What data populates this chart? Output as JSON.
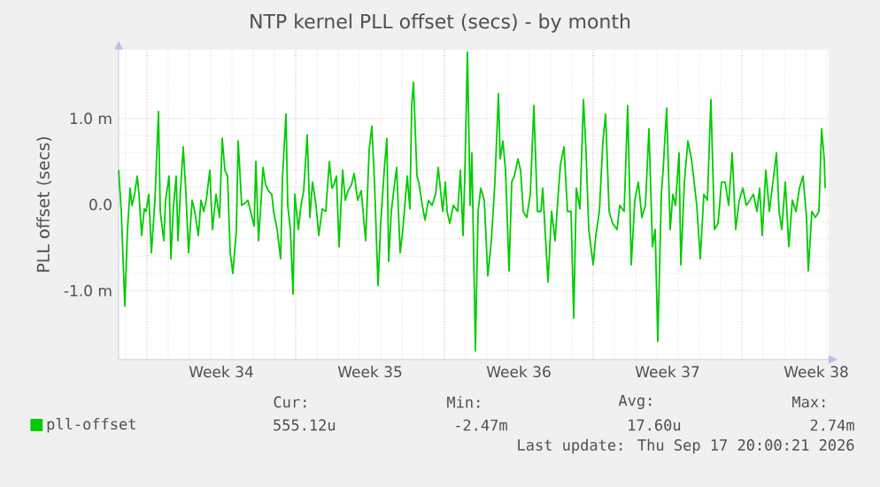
{
  "chart_data": {
    "type": "line",
    "title": "NTP kernel PLL offset (secs) - by month",
    "ylabel": "PLL offset (secs)",
    "xlim": [
      "2026-08-15T16:00",
      "2026-09-18T02:00"
    ],
    "xticks": [
      {
        "value": "2026-08-17T00:00",
        "label": null
      },
      {
        "value": "2026-08-20T12:00",
        "label": "Week 34"
      },
      {
        "value": "2026-08-24T00:00",
        "label": null
      },
      {
        "value": "2026-08-27T12:00",
        "label": "Week 35"
      },
      {
        "value": "2026-08-31T00:00",
        "label": null
      },
      {
        "value": "2026-09-03T12:00",
        "label": "Week 36"
      },
      {
        "value": "2026-09-07T00:00",
        "label": null
      },
      {
        "value": "2026-09-10T12:00",
        "label": "Week 37"
      },
      {
        "value": "2026-09-14T00:00",
        "label": null
      },
      {
        "value": "2026-09-17T12:00",
        "label": "Week 38"
      }
    ],
    "ylim": [
      -1.8,
      1.8
    ],
    "yticks": [
      {
        "value": -1,
        "label": "-1.0 m"
      },
      {
        "value": 0,
        "label": "0.0"
      },
      {
        "value": 1,
        "label": "1.0 m"
      }
    ],
    "grid": true,
    "legend": "bottom",
    "marker": "none",
    "line_style": "solid",
    "annotations": [
      "Cur:",
      "555.12u",
      "Min:",
      "-2.47m",
      "Avg:",
      "17.60u",
      "Max:",
      "2.74m",
      "Last update: Thu Sep 17 20:00:21 2026"
    ],
    "series": [
      {
        "name": "pll-offset",
        "color": "#00cc00",
        "x": [
          "2026-08-15T16:00",
          "2026-08-15T19:00",
          "2026-08-15T23:00",
          "2026-08-16T02:00",
          "2026-08-16T05:00",
          "2026-08-16T07:00",
          "2026-08-16T10:00",
          "2026-08-16T13:00",
          "2026-08-16T15:00",
          "2026-08-16T18:00",
          "2026-08-16T21:00",
          "2026-08-16T23:00",
          "2026-08-17T02:00",
          "2026-08-17T05:00",
          "2026-08-17T09:00",
          "2026-08-17T13:00",
          "2026-08-17T15:00",
          "2026-08-17T19:00",
          "2026-08-17T21:00",
          "2026-08-18T01:00",
          "2026-08-18T03:00",
          "2026-08-18T06:00",
          "2026-08-18T09:00",
          "2026-08-18T11:00",
          "2026-08-18T14:00",
          "2026-08-18T17:00",
          "2026-08-18T20:00",
          "2026-08-18T23:00",
          "2026-08-19T03:00",
          "2026-08-19T06:00",
          "2026-08-19T10:00",
          "2026-08-19T13:00",
          "2026-08-19T16:00",
          "2026-08-19T19:00",
          "2026-08-19T23:00",
          "2026-08-20T02:00",
          "2026-08-20T06:00",
          "2026-08-20T10:00",
          "2026-08-20T13:00",
          "2026-08-20T16:00",
          "2026-08-20T19:00",
          "2026-08-20T22:00",
          "2026-08-21T01:00",
          "2026-08-21T05:00",
          "2026-08-21T07:00",
          "2026-08-21T11:00",
          "2026-08-21T15:00",
          "2026-08-21T18:00",
          "2026-08-21T21:00",
          "2026-08-22T01:00",
          "2026-08-22T03:00",
          "2026-08-22T06:00",
          "2026-08-22T09:00",
          "2026-08-22T11:00",
          "2026-08-22T14:00",
          "2026-08-22T17:00",
          "2026-08-22T21:00",
          "2026-08-22T23:00",
          "2026-08-23T03:00",
          "2026-08-23T07:00",
          "2026-08-23T09:00",
          "2026-08-23T13:00",
          "2026-08-23T15:00",
          "2026-08-23T18:00",
          "2026-08-23T21:00",
          "2026-08-23T23:00",
          "2026-08-24T03:00",
          "2026-08-24T06:00",
          "2026-08-24T09:00",
          "2026-08-24T13:00",
          "2026-08-24T16:00",
          "2026-08-24T19:00",
          "2026-08-24T23:00",
          "2026-08-25T02:00",
          "2026-08-25T06:00",
          "2026-08-25T10:00",
          "2026-08-25T14:00",
          "2026-08-25T17:00",
          "2026-08-25T19:00",
          "2026-08-25T22:00",
          "2026-08-26T01:00",
          "2026-08-26T05:00",
          "2026-08-26T08:00",
          "2026-08-26T11:00",
          "2026-08-26T15:00",
          "2026-08-26T18:00",
          "2026-08-26T22:00",
          "2026-08-27T02:00",
          "2026-08-27T07:00",
          "2026-08-27T11:00",
          "2026-08-27T14:00",
          "2026-08-27T17:00",
          "2026-08-27T21:00",
          "2026-08-28T00:00",
          "2026-08-28T04:00",
          "2026-08-28T07:00",
          "2026-08-28T09:00",
          "2026-08-28T12:00",
          "2026-08-28T15:00",
          "2026-08-28T18:00",
          "2026-08-28T22:00",
          "2026-08-29T01:00",
          "2026-08-29T06:00",
          "2026-08-29T09:00",
          "2026-08-29T11:00",
          "2026-08-29T13:00",
          "2026-08-29T17:00",
          "2026-08-29T19:00",
          "2026-08-29T23:00",
          "2026-08-30T02:00",
          "2026-08-30T06:00",
          "2026-08-30T10:00",
          "2026-08-30T14:00",
          "2026-08-30T17:00",
          "2026-08-30T22:00",
          "2026-08-31T01:00",
          "2026-08-31T03:00",
          "2026-08-31T06:00",
          "2026-08-31T10:00",
          "2026-08-31T15:00",
          "2026-08-31T18:00",
          "2026-08-31T21:00",
          "2026-08-31T23:00",
          "2026-09-01T02:00",
          "2026-09-01T05:00",
          "2026-09-01T07:00",
          "2026-09-01T11:00",
          "2026-09-01T14:00",
          "2026-09-01T17:00",
          "2026-09-01T21:00",
          "2026-09-02T01:00",
          "2026-09-02T05:00",
          "2026-09-02T09:00",
          "2026-09-02T13:00",
          "2026-09-02T15:00",
          "2026-09-02T18:00",
          "2026-09-02T21:00",
          "2026-09-03T01:00",
          "2026-09-03T04:00",
          "2026-09-03T07:00",
          "2026-09-03T11:00",
          "2026-09-03T14:00",
          "2026-09-03T17:00",
          "2026-09-03T21:00",
          "2026-09-04T01:00",
          "2026-09-04T05:00",
          "2026-09-04T09:00",
          "2026-09-04T13:00",
          "2026-09-04T15:00",
          "2026-09-04T21:00",
          "2026-09-05T01:00",
          "2026-09-05T05:00",
          "2026-09-05T08:00",
          "2026-09-05T11:00",
          "2026-09-05T15:00",
          "2026-09-05T19:00",
          "2026-09-05T23:00",
          "2026-09-06T02:00",
          "2026-09-06T05:00",
          "2026-09-06T09:00",
          "2026-09-06T13:00",
          "2026-09-06T16:00",
          "2026-09-06T19:00",
          "2026-09-07T00:00",
          "2026-09-07T03:00",
          "2026-09-07T07:00",
          "2026-09-07T11:00",
          "2026-09-07T14:00",
          "2026-09-07T18:00",
          "2026-09-07T22:00",
          "2026-09-08T03:00",
          "2026-09-08T06:00",
          "2026-09-08T11:00",
          "2026-09-08T15:00",
          "2026-09-08T19:00",
          "2026-09-08T23:00",
          "2026-09-09T03:00",
          "2026-09-09T07:00",
          "2026-09-09T11:00",
          "2026-09-09T15:00",
          "2026-09-09T19:00",
          "2026-09-09T22:00",
          "2026-09-10T01:00",
          "2026-09-10T05:00",
          "2026-09-10T07:00",
          "2026-09-10T11:00",
          "2026-09-10T15:00",
          "2026-09-10T18:00",
          "2026-09-10T21:00",
          "2026-09-11T01:00",
          "2026-09-11T03:00",
          "2026-09-11T07:00",
          "2026-09-11T11:00",
          "2026-09-11T15:00",
          "2026-09-11T21:00",
          "2026-09-12T01:00",
          "2026-09-12T05:00",
          "2026-09-12T09:00",
          "2026-09-12T13:00",
          "2026-09-12T17:00",
          "2026-09-12T21:00",
          "2026-09-13T01:00",
          "2026-09-13T05:00",
          "2026-09-13T09:00",
          "2026-09-13T13:00",
          "2026-09-13T17:00",
          "2026-09-13T21:00",
          "2026-09-14T01:00",
          "2026-09-14T05:00",
          "2026-09-14T09:00",
          "2026-09-14T13:00",
          "2026-09-14T17:00",
          "2026-09-14T20:00",
          "2026-09-14T23:00",
          "2026-09-15T03:00",
          "2026-09-15T07:00",
          "2026-09-15T11:00",
          "2026-09-15T15:00",
          "2026-09-15T18:00",
          "2026-09-15T21:00",
          "2026-09-16T01:00",
          "2026-09-16T05:00",
          "2026-09-16T09:00",
          "2026-09-16T13:00",
          "2026-09-16T17:00",
          "2026-09-16T21:00",
          "2026-09-17T01:00",
          "2026-09-17T03:00",
          "2026-09-17T07:00",
          "2026-09-17T11:00",
          "2026-09-17T15:00",
          "2026-09-17T18:00",
          "2026-09-17T21:00",
          "2026-09-17T22:00"
        ],
        "values": [
          0.4,
          -0.08,
          -1.18,
          -0.29,
          0.19,
          -0.01,
          0.12,
          0.33,
          0.12,
          -0.36,
          -0.05,
          -0.08,
          0.12,
          -0.56,
          0.05,
          1.08,
          -0.08,
          -0.42,
          0.05,
          0.33,
          -0.63,
          -0.01,
          0.33,
          -0.42,
          0.19,
          0.67,
          0.12,
          -0.56,
          0.05,
          -0.08,
          -0.36,
          0.05,
          -0.08,
          0.05,
          0.4,
          -0.29,
          0.12,
          -0.15,
          0.77,
          0.4,
          0.33,
          -0.56,
          -0.8,
          -0.29,
          0.74,
          -0.01,
          0.02,
          0.05,
          -0.08,
          -0.25,
          0.5,
          -0.42,
          0.05,
          0.43,
          0.23,
          0.16,
          0.12,
          -0.08,
          -0.29,
          -0.63,
          0.29,
          1.05,
          -0.01,
          -0.29,
          -1.04,
          0.12,
          -0.29,
          -0.01,
          0.16,
          0.81,
          -0.15,
          0.26,
          -0.01,
          -0.36,
          -0.05,
          -0.08,
          0.5,
          0.19,
          0.23,
          0.33,
          -0.49,
          0.4,
          0.05,
          0.16,
          0.23,
          0.36,
          0.05,
          0.16,
          -0.42,
          0.64,
          0.91,
          0.26,
          -0.94,
          -0.22,
          0.4,
          0.77,
          -0.66,
          -0.08,
          0.19,
          0.43,
          -0.56,
          -0.29,
          0.33,
          -0.05,
          1.15,
          1.42,
          0.33,
          0.26,
          -0.01,
          -0.18,
          0.05,
          -0.01,
          0.12,
          0.43,
          -0.08,
          0.26,
          -0.08,
          -0.22,
          -0.01,
          -0.08,
          0.4,
          -0.36,
          0.33,
          1.77,
          -0.01,
          0.6,
          -1.7,
          -0.08,
          0.19,
          0.05,
          -0.83,
          -0.42,
          0.26,
          1.29,
          0.53,
          0.74,
          0.4,
          -0.77,
          0.26,
          0.33,
          0.53,
          0.4,
          -0.08,
          -0.15,
          0.12,
          1.15,
          -0.08,
          -0.08,
          0.19,
          -0.9,
          -0.08,
          -0.42,
          0.05,
          0.46,
          0.67,
          -0.08,
          -0.08,
          -1.32,
          0.19,
          -0.05,
          1.22,
          0.6,
          -0.29,
          -0.7,
          -0.36,
          -0.08,
          0.74,
          1.05,
          -0.08,
          -0.22,
          -0.29,
          -0.01,
          -0.08,
          1.15,
          -0.7,
          0.05,
          0.26,
          -0.15,
          -0.01,
          0.88,
          -0.49,
          -0.29,
          -1.59,
          0.12,
          0.4,
          1.12,
          -0.29,
          0.12,
          -0.01,
          0.6,
          -0.7,
          0.26,
          0.74,
          0.53,
          -0.01,
          -0.63,
          0.12,
          0.05,
          1.22,
          -0.29,
          -0.22,
          0.26,
          0.26,
          -0.01,
          0.6,
          -0.29,
          0.05,
          0.19,
          -0.01,
          0.05,
          0.12,
          -0.08,
          0.19,
          -0.36,
          0.4,
          -0.08,
          0.26,
          0.6,
          -0.08,
          -0.29,
          0.26,
          -0.49,
          0.05,
          -0.08,
          0.19,
          0.33,
          -0.15,
          -0.77,
          -0.08,
          -0.15,
          -0.08,
          0.88,
          0.53,
          0.19
        ]
      }
    ]
  }
}
